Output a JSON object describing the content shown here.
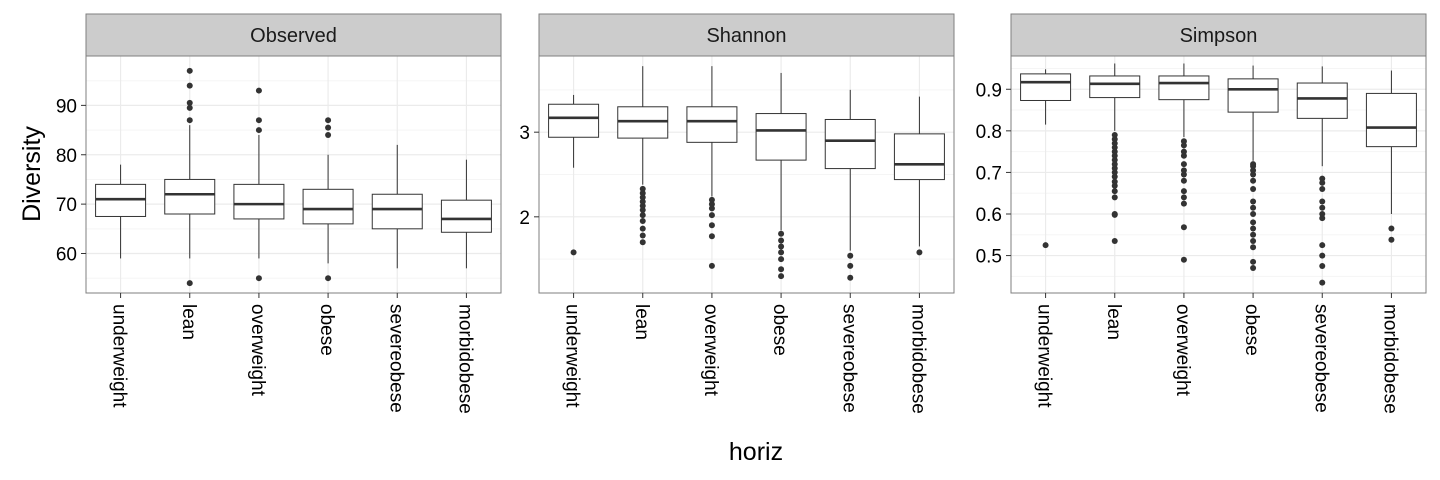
{
  "chart_data": {
    "type": "box",
    "facet_by": "metric",
    "xlabel": "horiz",
    "ylabel": "Diversity",
    "categories": [
      "underweight",
      "lean",
      "overweight",
      "obese",
      "severeobese",
      "morbidobese"
    ],
    "grid": true,
    "colors": {
      "strip_fill": "#cccccc",
      "panel_border": "#7f7f7f",
      "grid_major": "#ebebeb",
      "grid_minor": "#f5f5f5",
      "box_line": "#333333",
      "outlier": "#333333"
    },
    "panels": [
      {
        "strip": "Observed",
        "ylim": [
          52,
          100
        ],
        "yticks": [
          60,
          70,
          80,
          90
        ],
        "ytick_labels": [
          "60",
          "70",
          "80",
          "90"
        ],
        "boxes": [
          {
            "category": "underweight",
            "whisker_low": 59,
            "q1": 67.5,
            "median": 71,
            "q3": 74,
            "whisker_high": 78,
            "outliers": []
          },
          {
            "category": "lean",
            "whisker_low": 59,
            "q1": 68,
            "median": 72,
            "q3": 75,
            "whisker_high": 86,
            "outliers": [
              54,
              87,
              89.5,
              90.5,
              94,
              97
            ]
          },
          {
            "category": "overweight",
            "whisker_low": 59,
            "q1": 67,
            "median": 70,
            "q3": 74,
            "whisker_high": 84,
            "outliers": [
              55,
              85,
              87,
              93
            ]
          },
          {
            "category": "obese",
            "whisker_low": 58,
            "q1": 66,
            "median": 69,
            "q3": 73,
            "whisker_high": 80,
            "outliers": [
              55,
              84,
              85.5,
              87
            ]
          },
          {
            "category": "severeobese",
            "whisker_low": 57,
            "q1": 65,
            "median": 69,
            "q3": 72,
            "whisker_high": 82,
            "outliers": []
          },
          {
            "category": "morbidobese",
            "whisker_low": 57,
            "q1": 64.3,
            "median": 67,
            "q3": 70.8,
            "whisker_high": 79,
            "outliers": []
          }
        ]
      },
      {
        "strip": "Shannon",
        "ylim": [
          1.1,
          3.9
        ],
        "yticks": [
          2,
          3
        ],
        "ytick_labels": [
          "2",
          "3"
        ],
        "boxes": [
          {
            "category": "underweight",
            "whisker_low": 2.58,
            "q1": 2.94,
            "median": 3.17,
            "q3": 3.33,
            "whisker_high": 3.44,
            "outliers": [
              1.58
            ]
          },
          {
            "category": "lean",
            "whisker_low": 2.38,
            "q1": 2.93,
            "median": 3.13,
            "q3": 3.3,
            "whisker_high": 3.78,
            "outliers": [
              1.7,
              1.78,
              1.86,
              1.95,
              2.02,
              2.08,
              2.13,
              2.18,
              2.23,
              2.28,
              2.33
            ]
          },
          {
            "category": "overweight",
            "whisker_low": 2.24,
            "q1": 2.88,
            "median": 3.13,
            "q3": 3.3,
            "whisker_high": 3.78,
            "outliers": [
              1.42,
              1.77,
              1.9,
              2.02,
              2.1,
              2.15,
              2.2
            ]
          },
          {
            "category": "obese",
            "whisker_low": 1.84,
            "q1": 2.67,
            "median": 3.02,
            "q3": 3.22,
            "whisker_high": 3.7,
            "outliers": [
              1.3,
              1.38,
              1.5,
              1.58,
              1.65,
              1.72,
              1.8
            ]
          },
          {
            "category": "severeobese",
            "whisker_low": 1.6,
            "q1": 2.57,
            "median": 2.9,
            "q3": 3.15,
            "whisker_high": 3.5,
            "outliers": [
              1.28,
              1.42,
              1.54
            ]
          },
          {
            "category": "morbidobese",
            "whisker_low": 1.65,
            "q1": 2.44,
            "median": 2.62,
            "q3": 2.98,
            "whisker_high": 3.42,
            "outliers": [
              1.58
            ]
          }
        ]
      },
      {
        "strip": "Simpson",
        "ylim": [
          0.41,
          0.98
        ],
        "yticks": [
          0.5,
          0.6,
          0.7,
          0.8,
          0.9
        ],
        "ytick_labels": [
          "0.5",
          "0.6",
          "0.7",
          "0.8",
          "0.9"
        ],
        "boxes": [
          {
            "category": "underweight",
            "whisker_low": 0.815,
            "q1": 0.873,
            "median": 0.917,
            "q3": 0.937,
            "whisker_high": 0.948,
            "outliers": [
              0.525
            ]
          },
          {
            "category": "lean",
            "whisker_low": 0.8,
            "q1": 0.88,
            "median": 0.913,
            "q3": 0.932,
            "whisker_high": 0.962,
            "outliers": [
              0.535,
              0.598,
              0.6,
              0.64,
              0.655,
              0.668,
              0.678,
              0.69,
              0.7,
              0.71,
              0.72,
              0.73,
              0.74,
              0.75,
              0.76,
              0.77,
              0.78,
              0.79
            ]
          },
          {
            "category": "overweight",
            "whisker_low": 0.785,
            "q1": 0.875,
            "median": 0.915,
            "q3": 0.932,
            "whisker_high": 0.962,
            "outliers": [
              0.49,
              0.568,
              0.625,
              0.64,
              0.655,
              0.68,
              0.695,
              0.705,
              0.72,
              0.74,
              0.75,
              0.765,
              0.775
            ]
          },
          {
            "category": "obese",
            "whisker_low": 0.728,
            "q1": 0.845,
            "median": 0.9,
            "q3": 0.925,
            "whisker_high": 0.957,
            "outliers": [
              0.47,
              0.485,
              0.52,
              0.535,
              0.55,
              0.565,
              0.58,
              0.6,
              0.615,
              0.63,
              0.66,
              0.68,
              0.695,
              0.705,
              0.715,
              0.72
            ]
          },
          {
            "category": "severeobese",
            "whisker_low": 0.715,
            "q1": 0.83,
            "median": 0.878,
            "q3": 0.915,
            "whisker_high": 0.955,
            "outliers": [
              0.435,
              0.475,
              0.5,
              0.525,
              0.59,
              0.6,
              0.615,
              0.63,
              0.66,
              0.675,
              0.685
            ]
          },
          {
            "category": "morbidobese",
            "whisker_low": 0.6,
            "q1": 0.762,
            "median": 0.808,
            "q3": 0.89,
            "whisker_high": 0.945,
            "outliers": [
              0.538,
              0.565
            ]
          }
        ]
      }
    ]
  }
}
